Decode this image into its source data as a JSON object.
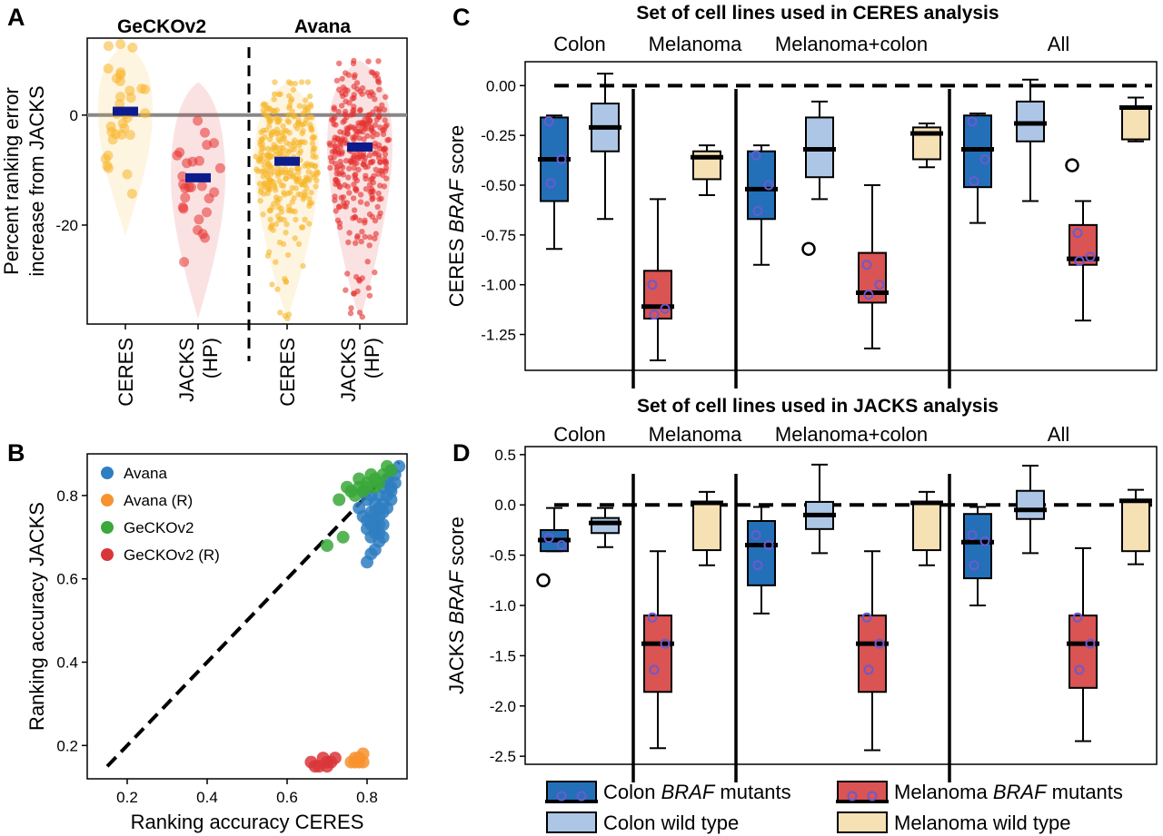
{
  "panel_labels": {
    "a": "A",
    "b": "B",
    "c": "C",
    "d": "D"
  },
  "chart_data": [
    {
      "panel": "A",
      "type": "scatter",
      "subtype": "violin-strip",
      "ylabel_lines": [
        "Percent ranking error",
        "increase from JACKS"
      ],
      "ylim": [
        -38,
        14
      ],
      "yticks": [
        0,
        -20
      ],
      "ytick_labels": [
        "0",
        "-20"
      ],
      "reference_line_y": 0,
      "groups": [
        {
          "title": "GeCKOv2",
          "categories": [
            "CERES",
            "JACKS (HP)"
          ]
        },
        {
          "title": "Avana",
          "categories": [
            "CERES",
            "JACKS (HP)"
          ]
        }
      ],
      "category_labels": [
        [
          "CERES"
        ],
        [
          "JACKS",
          "(HP)"
        ],
        [
          "CERES"
        ],
        [
          "JACKS",
          "(HP)"
        ]
      ],
      "series": [
        {
          "name": "GeCKOv2 CERES",
          "color": "#f7b52a",
          "mean": 0.7,
          "spread_low": -22,
          "spread_high": 13,
          "n": 32
        },
        {
          "name": "GeCKOv2 JACKS (HP)",
          "color": "#e5312f",
          "mean": -11.4,
          "spread_low": -37,
          "spread_high": 6,
          "n": 27
        },
        {
          "name": "Avana CERES",
          "color": "#f7b52a",
          "mean": -8.4,
          "spread_low": -37,
          "spread_high": 6,
          "n": 330
        },
        {
          "name": "Avana JACKS (HP)",
          "color": "#e5312f",
          "mean": -5.8,
          "spread_low": -37,
          "spread_high": 10,
          "n": 330
        }
      ],
      "mean_marker_color": "#0d1c8c"
    },
    {
      "panel": "B",
      "type": "scatter",
      "xlabel": "Ranking accuracy CERES",
      "ylabel": "Ranking accuracy JACKS",
      "xlim": [
        0.1,
        0.9
      ],
      "ylim": [
        0.12,
        0.9
      ],
      "xticks": [
        0.2,
        0.4,
        0.6,
        0.8
      ],
      "xtick_labels": [
        "0.2",
        "0.4",
        "0.6",
        "0.8"
      ],
      "yticks": [
        0.2,
        0.4,
        0.6,
        0.8
      ],
      "ytick_labels": [
        "0.2",
        "0.4",
        "0.6",
        "0.8"
      ],
      "diagonal_line": [
        [
          0.15,
          0.15
        ],
        [
          0.88,
          0.88
        ]
      ],
      "legend_placement": "top-left",
      "series": [
        {
          "name": "Avana",
          "color": "#2f7ec1",
          "points": [
            [
              0.86,
              0.86
            ],
            [
              0.85,
              0.84
            ],
            [
              0.84,
              0.82
            ],
            [
              0.83,
              0.8
            ],
            [
              0.82,
              0.78
            ],
            [
              0.81,
              0.76
            ],
            [
              0.8,
              0.74
            ],
            [
              0.82,
              0.72
            ],
            [
              0.84,
              0.7
            ],
            [
              0.83,
              0.69
            ],
            [
              0.82,
              0.67
            ],
            [
              0.81,
              0.66
            ],
            [
              0.8,
              0.64
            ],
            [
              0.83,
              0.75
            ],
            [
              0.84,
              0.78
            ],
            [
              0.85,
              0.8
            ],
            [
              0.86,
              0.82
            ],
            [
              0.87,
              0.85
            ],
            [
              0.82,
              0.71
            ],
            [
              0.81,
              0.7
            ],
            [
              0.79,
              0.75
            ],
            [
              0.78,
              0.77
            ],
            [
              0.8,
              0.79
            ],
            [
              0.83,
              0.73
            ],
            [
              0.84,
              0.76
            ],
            [
              0.86,
              0.79
            ],
            [
              0.85,
              0.77
            ],
            [
              0.82,
              0.74
            ],
            [
              0.8,
              0.72
            ],
            [
              0.81,
              0.8
            ],
            [
              0.79,
              0.81
            ],
            [
              0.84,
              0.73
            ],
            [
              0.85,
              0.83
            ],
            [
              0.83,
              0.77
            ],
            [
              0.88,
              0.87
            ],
            [
              0.87,
              0.83
            ],
            [
              0.82,
              0.76
            ],
            [
              0.81,
              0.73
            ],
            [
              0.83,
              0.71
            ],
            [
              0.86,
              0.81
            ]
          ]
        },
        {
          "name": "Avana (R)",
          "color": "#f7922f",
          "points": [
            [
              0.77,
              0.16
            ],
            [
              0.78,
              0.17
            ],
            [
              0.76,
              0.16
            ],
            [
              0.79,
              0.18
            ],
            [
              0.78,
              0.16
            ],
            [
              0.77,
              0.17
            ],
            [
              0.79,
              0.16
            ]
          ]
        },
        {
          "name": "GeCKOv2",
          "color": "#3aa83a",
          "points": [
            [
              0.7,
              0.68
            ],
            [
              0.74,
              0.7
            ],
            [
              0.76,
              0.81
            ],
            [
              0.78,
              0.82
            ],
            [
              0.8,
              0.83
            ],
            [
              0.82,
              0.84
            ],
            [
              0.84,
              0.85
            ],
            [
              0.86,
              0.86
            ],
            [
              0.75,
              0.82
            ],
            [
              0.79,
              0.81
            ],
            [
              0.81,
              0.85
            ],
            [
              0.83,
              0.83
            ],
            [
              0.77,
              0.8
            ],
            [
              0.85,
              0.87
            ],
            [
              0.73,
              0.79
            ],
            [
              0.8,
              0.82
            ],
            [
              0.82,
              0.82
            ],
            [
              0.78,
              0.84
            ]
          ]
        },
        {
          "name": "GeCKOv2 (R)",
          "color": "#d9363a",
          "points": [
            [
              0.66,
              0.16
            ],
            [
              0.68,
              0.15
            ],
            [
              0.7,
              0.16
            ],
            [
              0.69,
              0.17
            ],
            [
              0.71,
              0.16
            ],
            [
              0.67,
              0.15
            ],
            [
              0.72,
              0.17
            ],
            [
              0.7,
              0.15
            ]
          ]
        }
      ]
    },
    {
      "panel": "C",
      "type": "box",
      "title": "Set of cell lines used in CERES analysis",
      "ylabel": [
        "CERES ",
        "BRAF",
        " score"
      ],
      "ylim": [
        -1.43,
        0.12
      ],
      "yticks": [
        0,
        -0.25,
        -0.5,
        -0.75,
        -1.0,
        -1.25
      ],
      "ytick_labels": [
        "0.00",
        "-0.25",
        "-0.50",
        "-0.75",
        "-1.00",
        "-1.25"
      ],
      "reference_line_y": 0,
      "groups": [
        "Colon",
        "Melanoma",
        "Melanoma+colon",
        "All"
      ],
      "boxes": [
        {
          "group": 0,
          "slot": 0,
          "kind": "colon_mut",
          "whislo": -0.82,
          "q1": -0.58,
          "med": -0.37,
          "q3": -0.16,
          "whishi": -0.15,
          "points": [
            -0.18,
            -0.37,
            -0.49
          ]
        },
        {
          "group": 0,
          "slot": 1,
          "kind": "colon_wt",
          "whislo": -0.67,
          "q1": -0.33,
          "med": -0.21,
          "q3": -0.09,
          "whishi": 0.06,
          "points": []
        },
        {
          "group": 1,
          "slot": 0,
          "kind": "mel_mut",
          "whislo": -1.38,
          "q1": -1.17,
          "med": -1.11,
          "q3": -0.93,
          "whishi": -0.57,
          "points": [
            -1.0,
            -1.12,
            -1.15
          ]
        },
        {
          "group": 1,
          "slot": 1,
          "kind": "mel_wt",
          "whislo": -0.55,
          "q1": -0.47,
          "med": -0.36,
          "q3": -0.33,
          "whishi": -0.3,
          "points": []
        },
        {
          "group": 2,
          "slot": 0,
          "kind": "colon_mut",
          "whislo": -0.9,
          "q1": -0.67,
          "med": -0.52,
          "q3": -0.33,
          "whishi": -0.3,
          "points": [
            -0.35,
            -0.5,
            -0.63
          ]
        },
        {
          "group": 2,
          "slot": 1,
          "kind": "colon_wt",
          "whislo": -0.57,
          "q1": -0.46,
          "med": -0.32,
          "q3": -0.16,
          "whishi": -0.08,
          "outliers": [
            -0.82
          ],
          "points": []
        },
        {
          "group": 2,
          "slot": 2,
          "kind": "mel_mut",
          "whislo": -1.32,
          "q1": -1.09,
          "med": -1.04,
          "q3": -0.84,
          "whishi": -0.5,
          "points": [
            -0.9,
            -1.0,
            -1.05
          ]
        },
        {
          "group": 2,
          "slot": 3,
          "kind": "mel_wt",
          "whislo": -0.41,
          "q1": -0.37,
          "med": -0.24,
          "q3": -0.21,
          "whishi": -0.19,
          "points": []
        },
        {
          "group": 3,
          "slot": 0,
          "kind": "colon_mut",
          "whislo": -0.69,
          "q1": -0.51,
          "med": -0.32,
          "q3": -0.15,
          "whishi": -0.14,
          "points": [
            -0.18,
            -0.37,
            -0.48
          ]
        },
        {
          "group": 3,
          "slot": 1,
          "kind": "colon_wt",
          "whislo": -0.58,
          "q1": -0.28,
          "med": -0.19,
          "q3": -0.08,
          "whishi": 0.03,
          "points": []
        },
        {
          "group": 3,
          "slot": 2,
          "kind": "mel_mut",
          "whislo": -1.18,
          "q1": -0.9,
          "med": -0.87,
          "q3": -0.7,
          "whishi": -0.58,
          "outliers": [
            -0.4
          ],
          "points": [
            -0.74,
            -0.86,
            -0.88
          ]
        },
        {
          "group": 3,
          "slot": 3,
          "kind": "mel_wt",
          "whislo": -0.28,
          "q1": -0.27,
          "med": -0.11,
          "q3": -0.11,
          "whishi": -0.06,
          "points": []
        }
      ]
    },
    {
      "panel": "D",
      "type": "box",
      "title": "Set of cell lines used in JACKS analysis",
      "ylabel": [
        "JACKS ",
        "BRAF",
        " score"
      ],
      "ylim": [
        -2.58,
        0.58
      ],
      "yticks": [
        0.5,
        0.0,
        -0.5,
        -1.0,
        -1.5,
        -2.0,
        -2.5
      ],
      "ytick_labels": [
        "0.5",
        "0.0",
        "-0.5",
        "-1.0",
        "-1.5",
        "-2.0",
        "-2.5"
      ],
      "reference_line_y": 0,
      "groups": [
        "Colon",
        "Melanoma",
        "Melanoma+colon",
        "All"
      ],
      "boxes": [
        {
          "group": 0,
          "slot": 0,
          "kind": "colon_mut",
          "whislo": -0.46,
          "q1": -0.46,
          "med": -0.35,
          "q3": -0.25,
          "whishi": -0.03,
          "outliers": [
            -0.75
          ],
          "points": [
            -0.33,
            -0.4
          ]
        },
        {
          "group": 0,
          "slot": 1,
          "kind": "colon_wt",
          "whislo": -0.42,
          "q1": -0.28,
          "med": -0.18,
          "q3": -0.13,
          "whishi": -0.03,
          "points": []
        },
        {
          "group": 1,
          "slot": 0,
          "kind": "mel_mut",
          "whislo": -2.42,
          "q1": -1.86,
          "med": -1.38,
          "q3": -1.1,
          "whishi": -0.46,
          "points": [
            -1.12,
            -1.38,
            -1.64
          ]
        },
        {
          "group": 1,
          "slot": 1,
          "kind": "mel_wt",
          "whislo": -0.6,
          "q1": -0.45,
          "med": 0.02,
          "q3": 0.03,
          "whishi": 0.13,
          "points": []
        },
        {
          "group": 2,
          "slot": 0,
          "kind": "colon_mut",
          "whislo": -1.08,
          "q1": -0.8,
          "med": -0.4,
          "q3": -0.16,
          "whishi": -0.02,
          "points": [
            -0.3,
            -0.4,
            -0.6
          ]
        },
        {
          "group": 2,
          "slot": 1,
          "kind": "colon_wt",
          "whislo": -0.48,
          "q1": -0.24,
          "med": -0.1,
          "q3": 0.03,
          "whishi": 0.4,
          "points": []
        },
        {
          "group": 2,
          "slot": 2,
          "kind": "mel_mut",
          "whislo": -2.44,
          "q1": -1.86,
          "med": -1.38,
          "q3": -1.1,
          "whishi": -0.46,
          "points": [
            -1.12,
            -1.38,
            -1.64
          ]
        },
        {
          "group": 2,
          "slot": 3,
          "kind": "mel_wt",
          "whislo": -0.6,
          "q1": -0.45,
          "med": 0.02,
          "q3": 0.03,
          "whishi": 0.13,
          "points": []
        },
        {
          "group": 3,
          "slot": 0,
          "kind": "colon_mut",
          "whislo": -1.0,
          "q1": -0.73,
          "med": -0.37,
          "q3": -0.09,
          "whishi": -0.02,
          "points": [
            -0.3,
            -0.36,
            -0.6
          ]
        },
        {
          "group": 3,
          "slot": 1,
          "kind": "colon_wt",
          "whislo": -0.48,
          "q1": -0.14,
          "med": -0.05,
          "q3": 0.14,
          "whishi": 0.39,
          "points": []
        },
        {
          "group": 3,
          "slot": 2,
          "kind": "mel_mut",
          "whislo": -2.35,
          "q1": -1.82,
          "med": -1.38,
          "q3": -1.1,
          "whishi": -0.43,
          "points": [
            -1.12,
            -1.38,
            -1.64
          ]
        },
        {
          "group": 3,
          "slot": 3,
          "kind": "mel_wt",
          "whislo": -0.59,
          "q1": -0.46,
          "med": 0.04,
          "q3": 0.05,
          "whishi": 0.15,
          "points": []
        }
      ]
    }
  ],
  "box_legend": [
    {
      "kind": "colon_mut",
      "text": [
        "Colon ",
        "BRAF",
        " mutants"
      ],
      "color": "#2370b8"
    },
    {
      "kind": "mel_mut",
      "text": [
        "Melanoma ",
        "BRAF",
        " mutants"
      ],
      "color": "#d95452"
    },
    {
      "kind": "colon_wt",
      "text": [
        "Colon wild type"
      ],
      "color": "#aec6e6"
    },
    {
      "kind": "mel_wt",
      "text": [
        "Melanoma wild type"
      ],
      "color": "#f6e1b5"
    }
  ],
  "colors": {
    "colon_mut": "#2370b8",
    "colon_wt": "#aec6e6",
    "mel_mut": "#d95452",
    "mel_wt": "#f6e1b5",
    "point_ring": "#6a5ad0"
  }
}
